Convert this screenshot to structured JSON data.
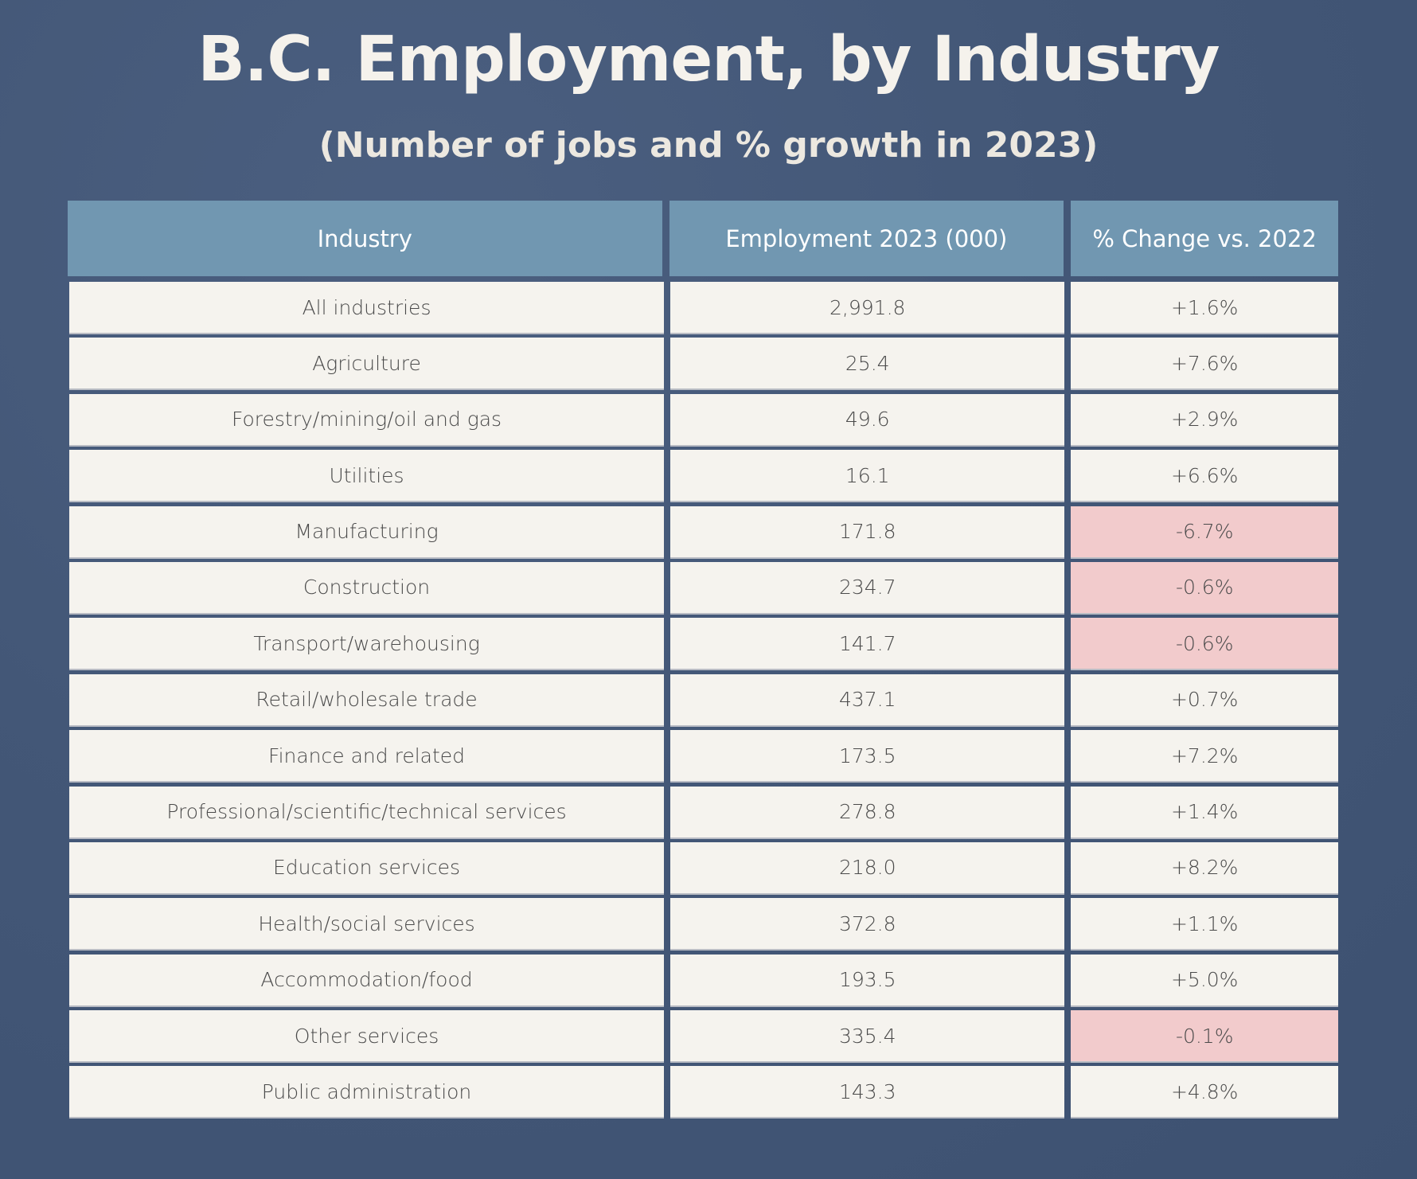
{
  "title": "B.C. Employment, by Industry",
  "subtitle": "(Number of jobs and % growth in 2023)",
  "colors": {
    "background": "#435777",
    "header": "#7197b1",
    "cell": "#f5f3ee",
    "negative_highlight": "#f2cbcc"
  },
  "chart_data": {
    "type": "table",
    "title": "B.C. Employment, by Industry",
    "subtitle": "(Number of jobs and % growth in 2023)",
    "columns": [
      "Industry",
      "Employment 2023 (000)",
      "% Change vs. 2022"
    ],
    "rows": [
      {
        "industry": "All industries",
        "employment": "2,991.8",
        "change": "+1.6%",
        "negative": false
      },
      {
        "industry": "Agriculture",
        "employment": "25.4",
        "change": "+7.6%",
        "negative": false
      },
      {
        "industry": "Forestry/mining/oil and gas",
        "employment": "49.6",
        "change": "+2.9%",
        "negative": false
      },
      {
        "industry": "Utilities",
        "employment": "16.1",
        "change": "+6.6%",
        "negative": false
      },
      {
        "industry": "Manufacturing",
        "employment": "171.8",
        "change": "-6.7%",
        "negative": true
      },
      {
        "industry": "Construction",
        "employment": "234.7",
        "change": "-0.6%",
        "negative": true
      },
      {
        "industry": "Transport/warehousing",
        "employment": "141.7",
        "change": "-0.6%",
        "negative": true
      },
      {
        "industry": "Retail/wholesale trade",
        "employment": "437.1",
        "change": "+0.7%",
        "negative": false
      },
      {
        "industry": "Finance and related",
        "employment": "173.5",
        "change": "+7.2%",
        "negative": false
      },
      {
        "industry": "Professional/scientific/technical services",
        "employment": "278.8",
        "change": "+1.4%",
        "negative": false
      },
      {
        "industry": "Education services",
        "employment": "218.0",
        "change": "+8.2%",
        "negative": false
      },
      {
        "industry": "Health/social services",
        "employment": "372.8",
        "change": "+1.1%",
        "negative": false
      },
      {
        "industry": "Accommodation/food",
        "employment": "193.5",
        "change": "+5.0%",
        "negative": false
      },
      {
        "industry": "Other services",
        "employment": "335.4",
        "change": "-0.1%",
        "negative": true
      },
      {
        "industry": "Public administration",
        "employment": "143.3",
        "change": "+4.8%",
        "negative": false
      }
    ]
  }
}
